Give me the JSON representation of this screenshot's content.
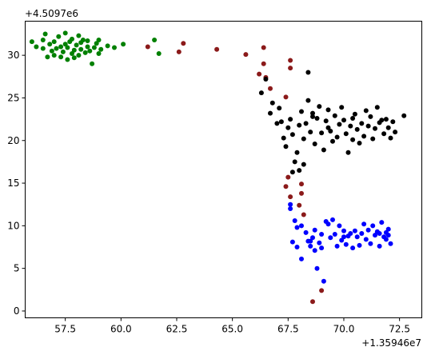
{
  "chart_data": {
    "type": "scatter",
    "title": "",
    "xlabel": "",
    "ylabel": "",
    "x_offset_label": "+1.35946e7",
    "y_offset_label": "+4.5097e6",
    "xlim": [
      55.7,
      73.5
    ],
    "ylim": [
      -0.8,
      34.0
    ],
    "xticks": [
      57.5,
      60.0,
      62.5,
      65.0,
      67.5,
      70.0,
      72.5
    ],
    "xtick_labels": [
      "57.5",
      "60.0",
      "62.5",
      "65.0",
      "67.5",
      "70.0",
      "72.5"
    ],
    "yticks": [
      0,
      5,
      10,
      15,
      20,
      25,
      30
    ],
    "ytick_labels": [
      "0",
      "5",
      "10",
      "15",
      "20",
      "25",
      "30"
    ],
    "grid": false,
    "series": [
      {
        "color": "#008000",
        "points": [
          [
            56.0,
            31.6
          ],
          [
            56.2,
            31.0
          ],
          [
            56.5,
            30.8
          ],
          [
            56.5,
            31.8
          ],
          [
            56.6,
            32.5
          ],
          [
            56.7,
            29.8
          ],
          [
            56.8,
            31.3
          ],
          [
            56.9,
            30.5
          ],
          [
            57.0,
            31.6
          ],
          [
            57.0,
            30.0
          ],
          [
            57.1,
            30.8
          ],
          [
            57.2,
            32.2
          ],
          [
            57.3,
            31.0
          ],
          [
            57.3,
            29.8
          ],
          [
            57.4,
            30.4
          ],
          [
            57.5,
            31.3
          ],
          [
            57.5,
            32.6
          ],
          [
            57.6,
            29.5
          ],
          [
            57.6,
            30.9
          ],
          [
            57.7,
            31.6
          ],
          [
            57.8,
            30.2
          ],
          [
            57.8,
            31.9
          ],
          [
            57.9,
            29.7
          ],
          [
            57.9,
            30.6
          ],
          [
            58.0,
            31.2
          ],
          [
            58.1,
            32.3
          ],
          [
            58.1,
            30.0
          ],
          [
            58.2,
            31.5
          ],
          [
            58.2,
            30.7
          ],
          [
            58.3,
            31.8
          ],
          [
            58.4,
            30.3
          ],
          [
            58.5,
            31.0
          ],
          [
            58.5,
            31.7
          ],
          [
            58.6,
            30.5
          ],
          [
            58.7,
            29.0
          ],
          [
            58.8,
            30.9
          ],
          [
            58.9,
            31.4
          ],
          [
            59.0,
            30.2
          ],
          [
            59.0,
            31.8
          ],
          [
            59.1,
            30.7
          ],
          [
            59.4,
            31.1
          ],
          [
            59.7,
            30.9
          ],
          [
            60.1,
            31.3
          ],
          [
            61.5,
            31.8
          ],
          [
            61.7,
            30.2
          ]
        ]
      },
      {
        "color": "#8b1a1a",
        "points": [
          [
            61.2,
            31.0
          ],
          [
            62.6,
            30.4
          ],
          [
            62.8,
            31.4
          ],
          [
            64.3,
            30.7
          ],
          [
            65.6,
            30.1
          ],
          [
            66.2,
            27.8
          ],
          [
            66.4,
            29.0
          ],
          [
            66.4,
            30.9
          ],
          [
            66.5,
            27.4
          ],
          [
            66.7,
            26.1
          ],
          [
            67.4,
            25.1
          ],
          [
            67.6,
            29.4
          ],
          [
            67.6,
            28.5
          ],
          [
            67.5,
            15.7
          ],
          [
            67.4,
            14.6
          ],
          [
            67.6,
            13.4
          ],
          [
            68.1,
            14.9
          ],
          [
            68.1,
            13.8
          ],
          [
            68.0,
            12.4
          ],
          [
            68.2,
            11.3
          ],
          [
            68.6,
            1.1
          ],
          [
            69.0,
            2.4
          ]
        ]
      },
      {
        "color": "#000000",
        "points": [
          [
            66.5,
            27.2
          ],
          [
            66.3,
            25.6
          ],
          [
            66.7,
            23.2
          ],
          [
            66.8,
            24.4
          ],
          [
            67.0,
            22.0
          ],
          [
            67.1,
            23.8
          ],
          [
            67.3,
            20.3
          ],
          [
            67.5,
            21.5
          ],
          [
            67.4,
            19.3
          ],
          [
            67.6,
            22.5
          ],
          [
            67.7,
            20.7
          ],
          [
            67.9,
            18.6
          ],
          [
            68.0,
            21.8
          ],
          [
            68.1,
            23.4
          ],
          [
            68.2,
            20.2
          ],
          [
            68.3,
            22.0
          ],
          [
            68.4,
            24.7
          ],
          [
            68.4,
            28.0
          ],
          [
            68.5,
            21.0
          ],
          [
            68.6,
            23.2
          ],
          [
            68.7,
            19.6
          ],
          [
            68.8,
            22.6
          ],
          [
            68.9,
            24.0
          ],
          [
            69.0,
            20.9
          ],
          [
            69.1,
            18.9
          ],
          [
            69.2,
            22.3
          ],
          [
            69.3,
            23.6
          ],
          [
            69.4,
            21.1
          ],
          [
            69.5,
            19.9
          ],
          [
            69.6,
            22.9
          ],
          [
            69.7,
            20.4
          ],
          [
            69.8,
            21.9
          ],
          [
            69.9,
            23.9
          ],
          [
            70.0,
            22.4
          ],
          [
            70.1,
            20.8
          ],
          [
            70.2,
            18.6
          ],
          [
            70.3,
            21.7
          ],
          [
            70.4,
            20.1
          ],
          [
            70.5,
            23.1
          ],
          [
            70.6,
            21.3
          ],
          [
            70.7,
            19.7
          ],
          [
            70.8,
            22.0
          ],
          [
            70.9,
            20.5
          ],
          [
            71.0,
            23.5
          ],
          [
            71.1,
            21.7
          ],
          [
            71.2,
            22.8
          ],
          [
            71.3,
            20.2
          ],
          [
            71.4,
            21.4
          ],
          [
            71.5,
            23.9
          ],
          [
            71.6,
            22.1
          ],
          [
            71.8,
            20.8
          ],
          [
            71.9,
            22.5
          ],
          [
            72.0,
            21.5
          ],
          [
            72.1,
            20.3
          ],
          [
            72.2,
            22.2
          ],
          [
            72.3,
            21.0
          ],
          [
            72.7,
            22.9
          ],
          [
            67.8,
            17.5
          ],
          [
            67.7,
            16.3
          ],
          [
            68.2,
            17.2
          ],
          [
            68.0,
            16.5
          ],
          [
            67.2,
            22.2
          ],
          [
            68.6,
            22.8
          ],
          [
            69.3,
            21.5
          ],
          [
            70.4,
            22.6
          ],
          [
            71.7,
            22.4
          ]
        ]
      },
      {
        "color": "#0000ff",
        "points": [
          [
            67.6,
            12.5
          ],
          [
            67.6,
            12.0
          ],
          [
            67.8,
            10.6
          ],
          [
            67.9,
            9.8
          ],
          [
            68.1,
            10.0
          ],
          [
            67.7,
            8.1
          ],
          [
            67.9,
            7.5
          ],
          [
            68.1,
            6.1
          ],
          [
            68.3,
            9.2
          ],
          [
            68.4,
            8.2
          ],
          [
            68.5,
            7.6
          ],
          [
            68.6,
            8.6
          ],
          [
            68.7,
            9.5
          ],
          [
            68.7,
            7.1
          ],
          [
            68.8,
            5.0
          ],
          [
            68.9,
            8.0
          ],
          [
            69.0,
            9.0
          ],
          [
            69.1,
            3.5
          ],
          [
            69.2,
            10.5
          ],
          [
            69.3,
            10.2
          ],
          [
            69.4,
            8.6
          ],
          [
            69.5,
            10.7
          ],
          [
            69.6,
            9.0
          ],
          [
            69.7,
            7.6
          ],
          [
            69.8,
            10.0
          ],
          [
            69.9,
            8.3
          ],
          [
            70.0,
            9.4
          ],
          [
            70.1,
            7.8
          ],
          [
            70.2,
            8.8
          ],
          [
            70.3,
            9.1
          ],
          [
            70.4,
            7.4
          ],
          [
            70.5,
            9.4
          ],
          [
            70.6,
            8.7
          ],
          [
            70.7,
            7.7
          ],
          [
            70.8,
            9.1
          ],
          [
            70.9,
            10.2
          ],
          [
            71.0,
            8.4
          ],
          [
            71.1,
            9.5
          ],
          [
            71.2,
            7.9
          ],
          [
            71.3,
            10.0
          ],
          [
            71.4,
            8.9
          ],
          [
            71.5,
            9.3
          ],
          [
            71.6,
            7.6
          ],
          [
            71.7,
            10.4
          ],
          [
            71.8,
            8.7
          ],
          [
            71.9,
            9.2
          ],
          [
            72.0,
            9.6
          ],
          [
            72.1,
            7.9
          ],
          [
            68.5,
            8.2
          ],
          [
            69.0,
            7.4
          ],
          [
            70.0,
            8.7
          ],
          [
            71.6,
            9.1
          ],
          [
            71.9,
            8.4
          ],
          [
            72.0,
            8.9
          ]
        ]
      }
    ]
  }
}
